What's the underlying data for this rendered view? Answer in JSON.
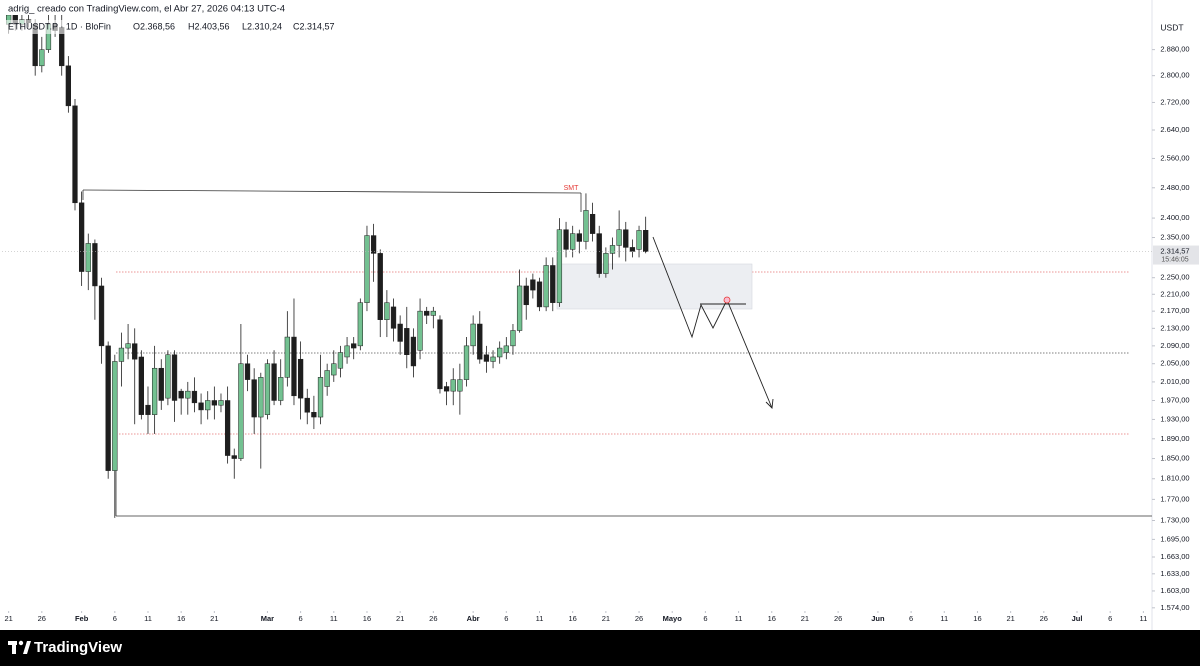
{
  "header": "adrig_ creado con TradingView.com, el Abr 27, 2026 04:13 UTC-4",
  "footer": {
    "brand": "TradingView"
  },
  "chart_data": {
    "type": "candlestick",
    "log": true,
    "grid": false,
    "legend": {
      "symbol": "ETHUSDT.P · 1D · BloFin",
      "ohlc": [
        "O2.368,56",
        "H2.403,56",
        "L2.310,24",
        "C2.314,57"
      ]
    },
    "currency": "USDT",
    "annotation": "SMT",
    "last_price_label": "2.314,57",
    "countdown": "15:46:05",
    "up_color": "#73c191",
    "down_color": "#1e1e1e",
    "x": [
      "01-21",
      "01-22",
      "01-23",
      "01-24",
      "01-25",
      "01-26",
      "01-27",
      "01-28",
      "01-29",
      "01-30",
      "01-31",
      "02-01",
      "02-02",
      "02-03",
      "02-04",
      "02-05",
      "02-06",
      "02-07",
      "02-08",
      "02-09",
      "02-10",
      "02-11",
      "02-12",
      "02-13",
      "02-14",
      "02-15",
      "02-16",
      "02-17",
      "02-18",
      "02-19",
      "02-20",
      "02-21",
      "02-22",
      "02-23",
      "02-24",
      "02-25",
      "02-26",
      "02-27",
      "02-28",
      "03-01",
      "03-02",
      "03-03",
      "03-04",
      "03-05",
      "03-06",
      "03-07",
      "03-08",
      "03-09",
      "03-10",
      "03-11",
      "03-12",
      "03-13",
      "03-14",
      "03-15",
      "03-16",
      "03-17",
      "03-18",
      "03-19",
      "03-20",
      "03-21",
      "03-22",
      "03-23",
      "03-24",
      "03-25",
      "03-26",
      "03-27",
      "03-28",
      "03-29",
      "03-30",
      "03-31",
      "04-01",
      "04-02",
      "04-03",
      "04-04",
      "04-05",
      "04-06",
      "04-07",
      "04-08",
      "04-09",
      "04-10",
      "04-11",
      "04-12",
      "04-13",
      "04-14",
      "04-15",
      "04-16",
      "04-17",
      "04-18",
      "04-19",
      "04-20",
      "04-21",
      "04-22",
      "04-23",
      "04-24",
      "04-25",
      "04-26",
      "04-27"
    ],
    "open": [
      2960,
      2990,
      2960,
      2975,
      2960,
      2830,
      2880,
      2960,
      2950,
      2830,
      2710,
      2440,
      2265,
      2335,
      2230,
      2090,
      1826,
      2055,
      2085,
      2095,
      2065,
      1960,
      1940,
      2040,
      1975,
      2070,
      1990,
      1975,
      1990,
      1965,
      1950,
      1970,
      1960,
      1970,
      1856,
      1850,
      2050,
      2015,
      1935,
      1940,
      2050,
      1970,
      2020,
      2110,
      2060,
      1975,
      1945,
      1935,
      2000,
      2025,
      2040,
      2065,
      2095,
      2090,
      2190,
      2355,
      2310,
      2150,
      2180,
      2140,
      2130,
      2110,
      2080,
      2170,
      2160,
      2150,
      2000,
      1990,
      1990,
      2015,
      2090,
      2140,
      2070,
      2055,
      2065,
      2075,
      2090,
      2125,
      2230,
      2245,
      2240,
      2180,
      2280,
      2190,
      2370,
      2320,
      2360,
      2340,
      2410,
      2360,
      2260,
      2310,
      2330,
      2370,
      2325,
      2320,
      2368.56
    ],
    "high": [
      3010,
      3020,
      3000,
      2995,
      2975,
      2920,
      3010,
      3000,
      2990,
      2860,
      2730,
      2470,
      2360,
      2345,
      2250,
      2100,
      2070,
      2120,
      2140,
      2130,
      2080,
      2000,
      2090,
      2060,
      2080,
      2080,
      1995,
      2010,
      2020,
      1985,
      1990,
      2000,
      1985,
      2000,
      1870,
      2140,
      2070,
      2040,
      2030,
      2060,
      2080,
      2060,
      2170,
      2200,
      2100,
      1995,
      1980,
      2070,
      2050,
      2080,
      2090,
      2110,
      2110,
      2200,
      2380,
      2385,
      2320,
      2220,
      2200,
      2160,
      2180,
      2130,
      2200,
      2180,
      2180,
      2160,
      2010,
      2040,
      2050,
      2110,
      2160,
      2170,
      2090,
      2080,
      2100,
      2110,
      2140,
      2270,
      2250,
      2260,
      2250,
      2300,
      2300,
      2400,
      2390,
      2380,
      2370,
      2465,
      2440,
      2380,
      2325,
      2350,
      2420,
      2390,
      2345,
      2380,
      2403.56
    ],
    "low": [
      2930,
      2940,
      2940,
      2950,
      2800,
      2810,
      2870,
      2920,
      2800,
      2690,
      2420,
      2230,
      2220,
      2150,
      2050,
      1810,
      1735,
      2000,
      2060,
      1920,
      1930,
      1900,
      1900,
      1950,
      1960,
      1925,
      1940,
      1940,
      1945,
      1920,
      1930,
      1930,
      1945,
      1840,
      1810,
      1845,
      1990,
      1900,
      1830,
      1930,
      1960,
      1960,
      2000,
      1960,
      1930,
      1920,
      1910,
      1920,
      1980,
      2010,
      2020,
      2050,
      2060,
      2080,
      2170,
      2240,
      2110,
      2110,
      2100,
      2070,
      2040,
      2020,
      2060,
      2140,
      2130,
      1985,
      1960,
      1960,
      1940,
      2000,
      2070,
      2050,
      2030,
      2040,
      2050,
      2060,
      2070,
      2120,
      2150,
      2200,
      2170,
      2170,
      2170,
      2180,
      2300,
      2300,
      2310,
      2320,
      2340,
      2250,
      2250,
      2270,
      2300,
      2290,
      2300,
      2300,
      2310.24
    ],
    "close": [
      2990,
      2960,
      2975,
      2965,
      2830,
      2880,
      2960,
      2940,
      2830,
      2710,
      2440,
      2265,
      2335,
      2230,
      2090,
      1826,
      2055,
      2085,
      2095,
      2060,
      1940,
      1940,
      2040,
      1970,
      2070,
      1970,
      1975,
      1990,
      1965,
      1950,
      1970,
      1960,
      1970,
      1856,
      1850,
      2050,
      2015,
      1935,
      2020,
      2050,
      1970,
      2020,
      2110,
      1980,
      1975,
      1945,
      1935,
      2020,
      2035,
      2050,
      2075,
      2090,
      2085,
      2190,
      2355,
      2310,
      2150,
      2190,
      2130,
      2100,
      2070,
      2045,
      2170,
      2160,
      2170,
      1995,
      1990,
      2015,
      2015,
      2090,
      2140,
      2060,
      2055,
      2065,
      2085,
      2090,
      2125,
      2230,
      2185,
      2220,
      2180,
      2280,
      2190,
      2370,
      2320,
      2360,
      2340,
      2420,
      2360,
      2260,
      2310,
      2330,
      2370,
      2325,
      2315,
      2368,
      2314.57
    ],
    "xlim": [
      "01-20",
      "07-12"
    ],
    "xticks": [
      {
        "value": "01-21",
        "label": "21"
      },
      {
        "value": "01-26",
        "label": "26"
      },
      {
        "value": "02-01",
        "label": "Feb"
      },
      {
        "value": "02-06",
        "label": "6"
      },
      {
        "value": "02-11",
        "label": "11"
      },
      {
        "value": "02-16",
        "label": "16"
      },
      {
        "value": "02-21",
        "label": "21"
      },
      {
        "value": "03-01",
        "label": "Mar"
      },
      {
        "value": "03-06",
        "label": "6"
      },
      {
        "value": "03-11",
        "label": "11"
      },
      {
        "value": "03-16",
        "label": "16"
      },
      {
        "value": "03-21",
        "label": "21"
      },
      {
        "value": "03-26",
        "label": "26"
      },
      {
        "value": "04-01",
        "label": "Abr"
      },
      {
        "value": "04-06",
        "label": "6"
      },
      {
        "value": "04-11",
        "label": "11"
      },
      {
        "value": "04-16",
        "label": "16"
      },
      {
        "value": "04-21",
        "label": "21"
      },
      {
        "value": "04-26",
        "label": "26"
      },
      {
        "value": "05-01",
        "label": "Mayo"
      },
      {
        "value": "05-06",
        "label": "6"
      },
      {
        "value": "05-11",
        "label": "11"
      },
      {
        "value": "05-16",
        "label": "16"
      },
      {
        "value": "05-21",
        "label": "21"
      },
      {
        "value": "05-26",
        "label": "26"
      },
      {
        "value": "06-01",
        "label": "Jun"
      },
      {
        "value": "06-06",
        "label": "6"
      },
      {
        "value": "06-11",
        "label": "11"
      },
      {
        "value": "06-16",
        "label": "16"
      },
      {
        "value": "06-21",
        "label": "21"
      },
      {
        "value": "06-26",
        "label": "26"
      },
      {
        "value": "07-01",
        "label": "Jul"
      },
      {
        "value": "07-06",
        "label": "6"
      },
      {
        "value": "07-11",
        "label": "11"
      }
    ],
    "ylim": [
      1545,
      2990
    ],
    "yticks": [
      {
        "value": 2880,
        "label": "2.880,00"
      },
      {
        "value": 2800,
        "label": "2.800,00"
      },
      {
        "value": 2720,
        "label": "2.720,00"
      },
      {
        "value": 2640,
        "label": "2.640,00"
      },
      {
        "value": 2560,
        "label": "2.560,00"
      },
      {
        "value": 2480,
        "label": "2.480,00"
      },
      {
        "value": 2400,
        "label": "2.400,00"
      },
      {
        "value": 2350,
        "label": "2.350,00"
      },
      {
        "value": 2250,
        "label": "2.250,00"
      },
      {
        "value": 2210,
        "label": "2.210,00"
      },
      {
        "value": 2170,
        "label": "2.170,00"
      },
      {
        "value": 2130,
        "label": "2.130,00"
      },
      {
        "value": 2090,
        "label": "2.090,00"
      },
      {
        "value": 2050,
        "label": "2.050,00"
      },
      {
        "value": 2010,
        "label": "2.010,00"
      },
      {
        "value": 1970,
        "label": "1.970,00"
      },
      {
        "value": 1930,
        "label": "1.930,00"
      },
      {
        "value": 1890,
        "label": "1.890,00"
      },
      {
        "value": 1850,
        "label": "1.850,00"
      },
      {
        "value": 1810,
        "label": "1.810,00"
      },
      {
        "value": 1770,
        "label": "1.770,00"
      },
      {
        "value": 1730,
        "label": "1.730,00"
      },
      {
        "value": 1695,
        "label": "1.695,00"
      },
      {
        "value": 1663,
        "label": "1.663,00"
      },
      {
        "value": 1633,
        "label": "1.633,00"
      },
      {
        "value": 1603,
        "label": "1.603,00"
      },
      {
        "value": 1574,
        "label": "1.574,00"
      }
    ]
  }
}
